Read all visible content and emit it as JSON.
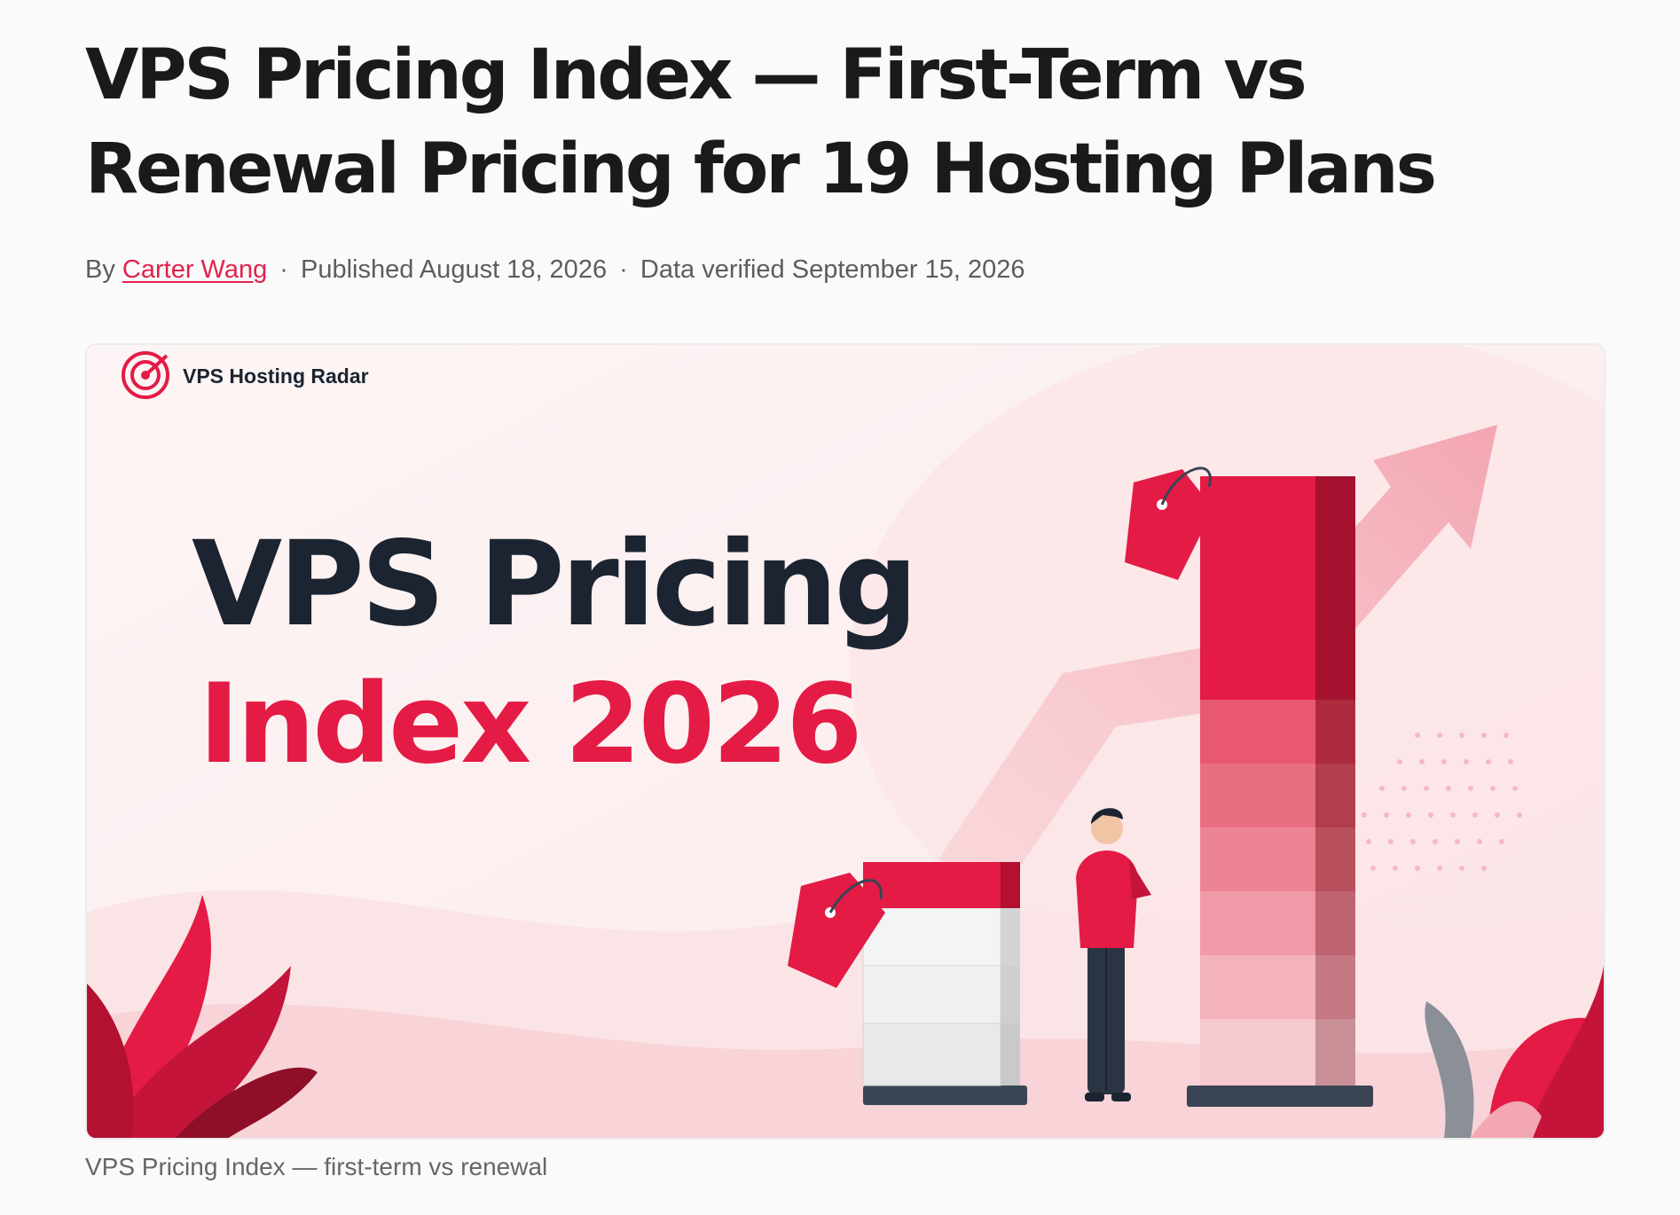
{
  "article": {
    "title": "VPS Pricing Index — First-Term vs Renewal Pricing for 19 Hosting Plans",
    "byline": {
      "by_label": "By",
      "author": "Carter Wang",
      "separator": "·",
      "published": "Published August 18, 2026",
      "verified": "Data verified September 15, 2026"
    },
    "hero": {
      "brand_name": "VPS Hosting Radar",
      "headline_line1": "VPS Pricing",
      "headline_line2": "Index 2026",
      "accent_color": "#e31b45",
      "dark_color": "#1b2430"
    },
    "caption": "VPS Pricing Index — first-term vs renewal"
  }
}
